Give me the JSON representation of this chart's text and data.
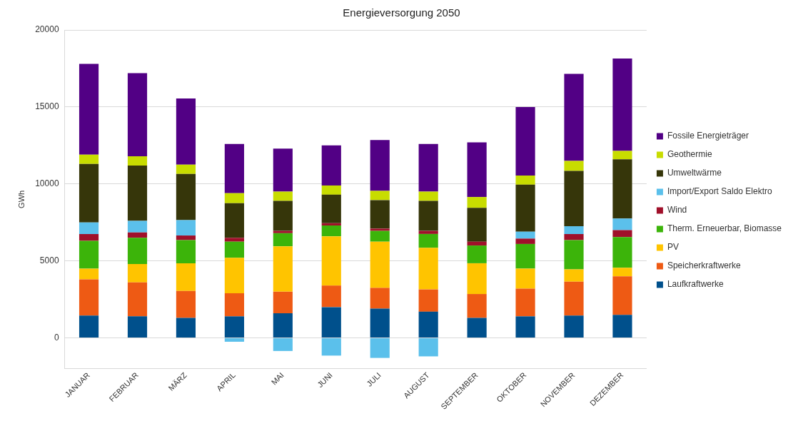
{
  "chart_data": {
    "type": "bar",
    "title": "Energieversorgung 2050",
    "ylabel": "GWh",
    "stacked": true,
    "grid": "y",
    "legend": "right",
    "categories": [
      "JANUAR",
      "FEBRUAR",
      "MÄRZ",
      "APRIL",
      "MAI",
      "JUNI",
      "JULI",
      "AUGUST",
      "SEPTEMBER",
      "OKTOBER",
      "NOVEMBER",
      "DEZEMBER"
    ],
    "ylim": [
      -2000,
      20000
    ],
    "yticks": [
      0,
      5000,
      10000,
      15000,
      20000
    ],
    "series": [
      {
        "name": "Laufkraftwerke",
        "color": "#00508c",
        "values": [
          1450,
          1400,
          1300,
          1400,
          1600,
          2000,
          1900,
          1700,
          1300,
          1400,
          1450,
          1500
        ]
      },
      {
        "name": "Speicherkraftwerke",
        "color": "#ee5a14",
        "values": [
          2350,
          2200,
          1750,
          1500,
          1400,
          1400,
          1350,
          1450,
          1550,
          1800,
          2200,
          2500
        ]
      },
      {
        "name": "PV",
        "color": "#ffc400",
        "values": [
          700,
          1200,
          1800,
          2300,
          2950,
          3200,
          3000,
          2700,
          2000,
          1300,
          800,
          550
        ]
      },
      {
        "name": "Therm. Erneuerbar, Biomasse",
        "color": "#3cb40a",
        "values": [
          1800,
          1700,
          1500,
          1050,
          850,
          700,
          700,
          900,
          1150,
          1600,
          1900,
          2000
        ]
      },
      {
        "name": "Wind",
        "color": "#a0102a",
        "values": [
          450,
          350,
          300,
          250,
          150,
          150,
          150,
          200,
          250,
          350,
          400,
          450
        ]
      },
      {
        "name": "Import/Export Saldo Elektro",
        "color": "#5bc0eb",
        "values": [
          750,
          750,
          1000,
          -250,
          -850,
          -1150,
          -1300,
          -1200,
          0,
          450,
          500,
          750
        ]
      },
      {
        "name": "Umweltwärme",
        "color": "#36360a",
        "values": [
          3800,
          3600,
          3000,
          2250,
          1950,
          1850,
          1850,
          1950,
          2200,
          3050,
          3600,
          3850
        ]
      },
      {
        "name": "Geothermie",
        "color": "#c8dc00",
        "values": [
          600,
          600,
          600,
          650,
          600,
          600,
          600,
          600,
          700,
          600,
          650,
          550
        ]
      },
      {
        "name": "Fossile Energieträger",
        "color": "#520085",
        "values": [
          5900,
          5400,
          4300,
          3200,
          2800,
          2600,
          3300,
          3100,
          3550,
          4450,
          5650,
          6000
        ]
      }
    ]
  }
}
